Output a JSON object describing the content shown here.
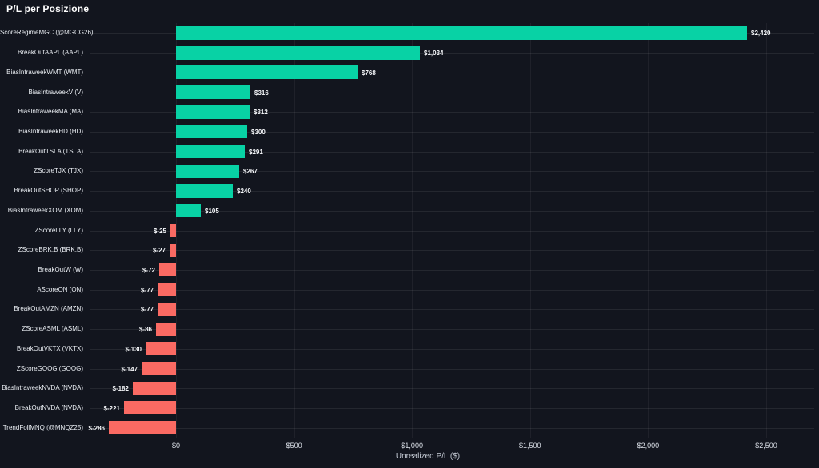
{
  "title": "P/L per Posizione",
  "chart_data": {
    "type": "bar",
    "orientation": "horizontal",
    "title": "P/L per Posizione",
    "xlabel": "Unrealized P/L ($)",
    "ylabel": "",
    "grid": true,
    "legend": false,
    "xlim": [
      -380,
      2700
    ],
    "x_tick_values": [
      0,
      500,
      1000,
      1500,
      2000,
      2500
    ],
    "x_tick_labels": [
      "$0",
      "$500",
      "$1,000",
      "$1,500",
      "$2,000",
      "$2,500"
    ],
    "categories": [
      "ScoreRegimeMGC (@MGCG26)",
      "BreakOutAAPL (AAPL)",
      "BiasIntraweekWMT (WMT)",
      "BiasIntraweekV (V)",
      "BiasIntraweekMA (MA)",
      "BiasIntraweekHD (HD)",
      "BreakOutTSLA (TSLA)",
      "ZScoreTJX (TJX)",
      "BreakOutSHOP (SHOP)",
      "BiasIntraweekXOM (XOM)",
      "ZScoreLLY (LLY)",
      "ZScoreBRK.B (BRK.B)",
      "BreakOutW (W)",
      "AScoreON (ON)",
      "BreakOutAMZN (AMZN)",
      "ZScoreASML (ASML)",
      "BreakOutVKTX (VKTX)",
      "ZScoreGOOG (GOOG)",
      "BiasIntraweekNVDA (NVDA)",
      "BreakOutNVDA (NVDA)",
      "TrendFollMNQ (@MNQZ25)"
    ],
    "values": [
      2420,
      1034,
      768,
      316,
      312,
      300,
      291,
      267,
      240,
      105,
      -25,
      -27,
      -72,
      -77,
      -77,
      -86,
      -130,
      -147,
      -182,
      -221,
      -286
    ],
    "value_labels": [
      "$2,420",
      "$1,034",
      "$768",
      "$316",
      "$312",
      "$300",
      "$291",
      "$267",
      "$240",
      "$105",
      "$-25",
      "$-27",
      "$-72",
      "$-77",
      "$-77",
      "$-86",
      "$-130",
      "$-147",
      "$-182",
      "$-221",
      "$-286"
    ],
    "colors": {
      "positive": "#08d2a5",
      "negative": "#fa6a63",
      "background": "#12151e",
      "text": "#e9edf2"
    }
  }
}
